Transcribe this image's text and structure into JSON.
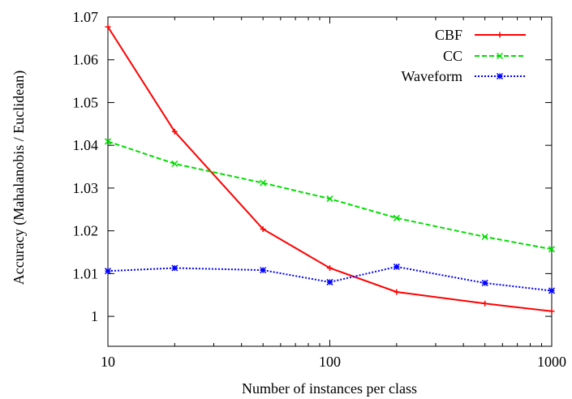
{
  "chart_data": {
    "type": "line",
    "title": "",
    "xlabel": "Number of instances per class",
    "ylabel": "Accuracy  (Mahalanobis / Euclidean)",
    "x_scale": "log",
    "xlim": [
      10,
      1000
    ],
    "ylim": [
      0.993,
      1.07
    ],
    "x_ticks": [
      10,
      100,
      1000
    ],
    "x_tick_labels": [
      "10",
      "100",
      "1000"
    ],
    "y_ticks": [
      1,
      1.01,
      1.02,
      1.03,
      1.04,
      1.05,
      1.06,
      1.07
    ],
    "y_tick_labels": [
      "1",
      "1.01",
      "1.02",
      "1.03",
      "1.04",
      "1.05",
      "1.06",
      "1.07"
    ],
    "grid": false,
    "legend_position": "top-right",
    "series": [
      {
        "name": "CBF",
        "color": "#ff0000",
        "line_style": "solid",
        "marker": "plus",
        "x": [
          10,
          20,
          50,
          100,
          200,
          500,
          1000
        ],
        "y": [
          1.0677,
          1.0432,
          1.0204,
          1.0113,
          1.0057,
          1.003,
          1.0012
        ]
      },
      {
        "name": "CC",
        "color": "#00dd00",
        "line_style": "dashed",
        "marker": "x",
        "x": [
          10,
          20,
          50,
          100,
          200,
          500,
          1000
        ],
        "y": [
          1.0409,
          1.0357,
          1.0312,
          1.0275,
          1.023,
          1.0186,
          1.0157
        ]
      },
      {
        "name": "Waveform",
        "color": "#0000ff",
        "line_style": "dotted",
        "marker": "star",
        "x": [
          10,
          20,
          50,
          100,
          200,
          500,
          1000
        ],
        "y": [
          1.0106,
          1.0113,
          1.0108,
          1.008,
          1.0116,
          1.0078,
          1.006
        ]
      }
    ]
  }
}
